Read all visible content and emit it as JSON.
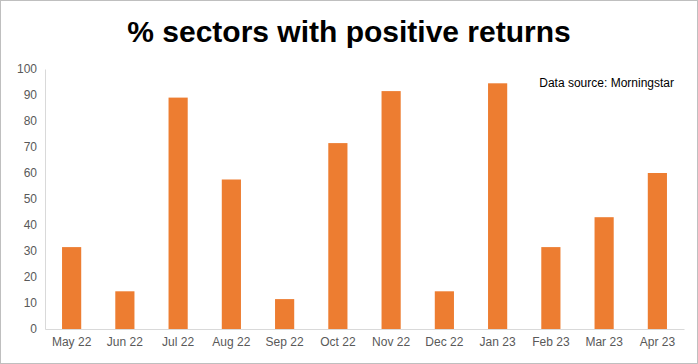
{
  "chart_data": {
    "type": "bar",
    "title": "% sectors with positive returns",
    "annotations": [
      "Data source: Morningstar"
    ],
    "categories": [
      "May 22",
      "Jun 22",
      "Jul 22",
      "Aug 22",
      "Sep 22",
      "Oct 22",
      "Nov 22",
      "Dec 22",
      "Jan 23",
      "Feb 23",
      "Mar 23",
      "Apr 23"
    ],
    "values": [
      31.5,
      14.5,
      89,
      57.5,
      11.5,
      71.5,
      91.5,
      14.5,
      94.5,
      31.5,
      43,
      60
    ],
    "color": "#ed7d31",
    "ylim": [
      0,
      100
    ],
    "yticks": [
      0,
      10,
      20,
      30,
      40,
      50,
      60,
      70,
      80,
      90,
      100
    ],
    "grid": false
  }
}
